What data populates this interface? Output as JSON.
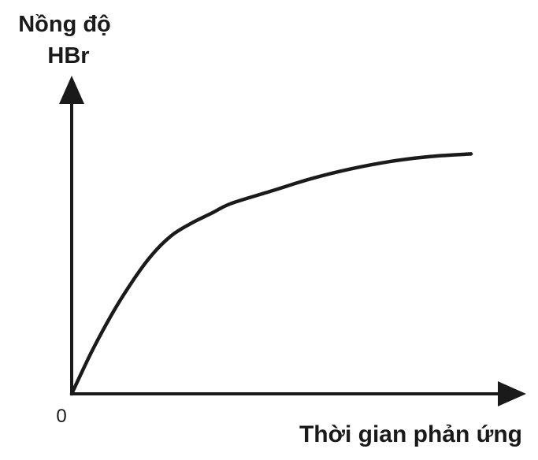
{
  "chart_data": {
    "type": "line",
    "title": "",
    "ylabel_lines": [
      "Nồng độ",
      "HBr"
    ],
    "xlabel": "Thời gian phản ứng",
    "origin_label": "0",
    "grid": false,
    "legend": "none",
    "line_color": "#1a1a1a",
    "xlim": [
      0,
      1
    ],
    "ylim": [
      0,
      1
    ],
    "series": [
      {
        "x": [
          0,
          0.05,
          0.1,
          0.15,
          0.2,
          0.25,
          0.3,
          0.35,
          0.4,
          0.5,
          0.6,
          0.7,
          0.8,
          0.9,
          1.0
        ],
        "y": [
          0,
          0.17,
          0.32,
          0.45,
          0.56,
          0.64,
          0.69,
          0.73,
          0.77,
          0.82,
          0.87,
          0.91,
          0.94,
          0.96,
          0.97
        ]
      }
    ]
  }
}
